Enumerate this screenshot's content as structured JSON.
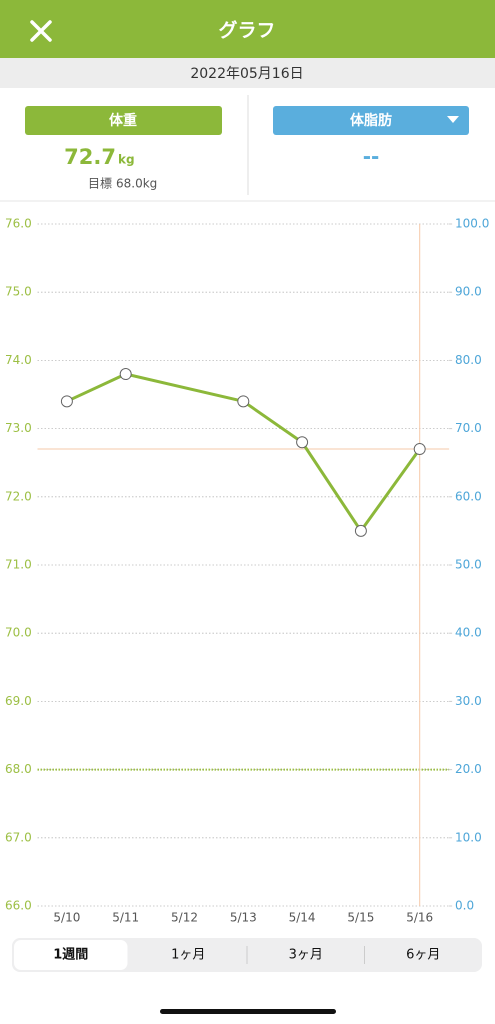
{
  "header": {
    "title": "グラフ",
    "date": "2022年05月16日"
  },
  "weight": {
    "button": "体重",
    "value": 72.7,
    "unit": "kg",
    "goal_label": "目標",
    "goal": "68.0kg"
  },
  "body_fat": {
    "button": "体脂肪",
    "value": "--"
  },
  "chart_data": {
    "type": "line",
    "categories": [
      "5/10",
      "5/11",
      "5/12",
      "5/13",
      "5/14",
      "5/15",
      "5/16"
    ],
    "series": [
      {
        "color": "#8cb83a",
        "x": [
          "5/10",
          "5/11",
          "5/13",
          "5/14",
          "5/15",
          "5/16"
        ],
        "values": [
          73.4,
          73.8,
          73.4,
          72.8,
          71.5,
          72.7
        ]
      }
    ],
    "ylim": [
      66,
      76
    ],
    "yticks": [
      {
        "value": 66,
        "label": "66.0"
      },
      {
        "value": 67,
        "label": "67.0"
      },
      {
        "value": 68,
        "label": "68.0"
      },
      {
        "value": 69,
        "label": "69.0"
      },
      {
        "value": 70,
        "label": "70.0"
      },
      {
        "value": 71,
        "label": "71.0"
      },
      {
        "value": 72,
        "label": "72.0"
      },
      {
        "value": 73,
        "label": "73.0"
      },
      {
        "value": 74,
        "label": "74.0"
      },
      {
        "value": 75,
        "label": "75.0"
      },
      {
        "value": 76,
        "label": "76.0"
      }
    ],
    "y2lim": [
      0,
      100
    ],
    "y2ticks": [
      {
        "value": 0,
        "label": "0.0"
      },
      {
        "value": 10,
        "label": "10.0"
      },
      {
        "value": 20,
        "label": "20.0"
      },
      {
        "value": 30,
        "label": "30.0"
      },
      {
        "value": 40,
        "label": "40.0"
      },
      {
        "value": 50,
        "label": "50.0"
      },
      {
        "value": 60,
        "label": "60.0"
      },
      {
        "value": 70,
        "label": "70.0"
      },
      {
        "value": 80,
        "label": "80.0"
      },
      {
        "value": 90,
        "label": "90.0"
      },
      {
        "value": 100,
        "label": "100.0"
      }
    ],
    "goal_line": 68,
    "current_line": 72.7,
    "selected": "5/16",
    "y_color": "#9cbf44",
    "y2_color": "#4ea6d8"
  },
  "tabs": {
    "items": [
      "1週間",
      "1ヶ月",
      "3ヶ月",
      "6ヶ月"
    ],
    "selected": 0
  }
}
